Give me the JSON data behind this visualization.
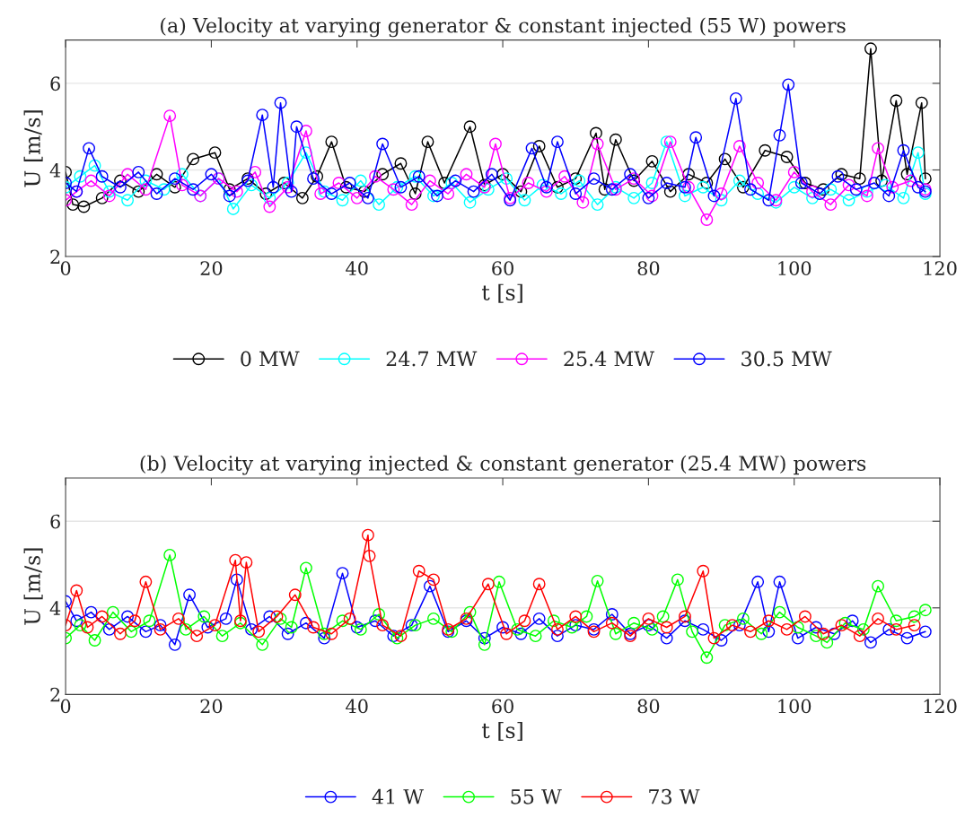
{
  "chart_data": [
    {
      "type": "line",
      "title": "(a) Velocity at varying generator & constant injected (55 W) powers",
      "xlabel": "t [s]",
      "ylabel": "U [m/s]",
      "xlim": [
        0,
        120
      ],
      "xticks": [
        0,
        20,
        40,
        60,
        80,
        100,
        120
      ],
      "ylim": [
        2,
        7
      ],
      "yticks": [
        2,
        4,
        6
      ],
      "grid": "y",
      "legend": "bottom",
      "marker": "circle",
      "line_style": "solid",
      "series": [
        {
          "name": "0 MW",
          "color": "#000000",
          "x": [
            0,
            1,
            2.5,
            5,
            7.5,
            10,
            12.5,
            15,
            17.5,
            20.5,
            22.5,
            25,
            27.5,
            30,
            32.5,
            34.5,
            36.5,
            38.5,
            41,
            43.5,
            46,
            48,
            49.7,
            52,
            55.5,
            57.5,
            60,
            62.5,
            65,
            67.5,
            70,
            72.8,
            74,
            75.5,
            78,
            80.5,
            83,
            85.5,
            88,
            90.5,
            93,
            96,
            99,
            101.5,
            104,
            106.5,
            109,
            110.5,
            112,
            114,
            115.5,
            117.5,
            118
          ],
          "values": [
            3.95,
            3.2,
            3.15,
            3.35,
            3.75,
            3.5,
            3.9,
            3.6,
            4.25,
            4.4,
            3.55,
            3.8,
            3.45,
            3.7,
            3.35,
            3.85,
            4.65,
            3.6,
            3.5,
            3.9,
            4.15,
            3.45,
            4.65,
            3.7,
            5.0,
            3.65,
            3.9,
            3.5,
            4.55,
            3.6,
            3.8,
            4.85,
            3.55,
            4.7,
            3.75,
            4.2,
            3.5,
            3.9,
            3.7,
            4.25,
            3.6,
            4.45,
            4.3,
            3.7,
            3.55,
            3.9,
            3.8,
            6.8,
            3.75,
            5.6,
            3.9,
            5.55,
            3.8
          ]
        },
        {
          "name": "24.7 MW",
          "color": "#00ffff",
          "x": [
            0,
            2,
            4,
            6,
            8.5,
            11,
            13.5,
            16,
            18.5,
            21,
            23,
            25.5,
            28,
            30.5,
            33,
            35.5,
            38,
            40.5,
            43,
            45.5,
            48,
            50.5,
            53,
            55.5,
            58,
            60.5,
            63,
            65.5,
            68,
            70.5,
            73,
            75.5,
            78,
            80.5,
            82.5,
            85,
            87.5,
            90,
            92.5,
            95,
            97.5,
            100,
            102.5,
            105,
            107.5,
            110,
            112.5,
            115,
            117,
            118
          ],
          "values": [
            3.6,
            3.85,
            4.1,
            3.5,
            3.3,
            3.75,
            3.55,
            3.9,
            3.4,
            3.8,
            3.1,
            3.65,
            3.35,
            3.7,
            4.4,
            3.5,
            3.3,
            3.75,
            3.2,
            3.6,
            3.85,
            3.4,
            3.7,
            3.25,
            3.55,
            3.8,
            3.3,
            3.65,
            3.45,
            3.75,
            3.2,
            3.6,
            3.35,
            3.7,
            4.65,
            3.4,
            3.6,
            3.3,
            3.75,
            3.45,
            3.25,
            3.6,
            3.35,
            3.55,
            3.3,
            3.5,
            3.65,
            3.35,
            4.4,
            3.45
          ]
        },
        {
          "name": "25.4 MW",
          "color": "#ff00ff",
          "x": [
            0,
            1.5,
            3.5,
            6,
            8.5,
            11,
            14.3,
            16,
            18.5,
            21,
            23.5,
            26,
            28,
            30.5,
            33,
            35,
            37.5,
            40,
            42.5,
            45,
            47.5,
            50,
            52.5,
            55,
            57.5,
            59,
            61,
            63.5,
            66,
            68.5,
            71,
            73,
            75.5,
            78,
            80.5,
            83,
            85.5,
            88,
            90,
            92.5,
            95,
            97.5,
            100,
            102.5,
            105,
            107.5,
            110,
            111.5,
            113.5,
            116,
            118
          ],
          "values": [
            3.3,
            3.5,
            3.75,
            3.4,
            3.9,
            3.55,
            5.25,
            3.65,
            3.4,
            3.8,
            3.5,
            3.95,
            3.15,
            3.6,
            4.9,
            3.45,
            3.7,
            3.35,
            3.85,
            3.55,
            3.2,
            3.75,
            3.45,
            3.9,
            3.6,
            4.6,
            3.35,
            3.7,
            3.5,
            3.85,
            3.25,
            4.6,
            3.55,
            3.8,
            3.4,
            4.65,
            3.6,
            2.85,
            3.45,
            4.55,
            3.7,
            3.3,
            3.95,
            3.5,
            3.2,
            3.65,
            3.4,
            4.5,
            3.6,
            3.75,
            3.55
          ]
        },
        {
          "name": "30.5 MW",
          "color": "#0000ff",
          "x": [
            0,
            1.5,
            3.2,
            5,
            7.5,
            10,
            12.5,
            15,
            17.5,
            20,
            22.5,
            25,
            27,
            28.5,
            29.5,
            31,
            31.7,
            34,
            36.5,
            39,
            41.5,
            43.5,
            46,
            48.5,
            51,
            53.5,
            56,
            58.5,
            61,
            64,
            66,
            67.5,
            70,
            72.5,
            75,
            77.5,
            80,
            82.5,
            85,
            86.5,
            89,
            92,
            94,
            96.5,
            98,
            99.2,
            101,
            103.5,
            106,
            108.5,
            111,
            113,
            115,
            117,
            118
          ],
          "values": [
            3.7,
            3.5,
            4.5,
            3.85,
            3.6,
            3.95,
            3.45,
            3.8,
            3.55,
            3.9,
            3.4,
            3.75,
            5.27,
            3.6,
            5.55,
            3.5,
            5.0,
            3.8,
            3.45,
            3.7,
            3.35,
            4.6,
            3.6,
            3.85,
            3.4,
            3.75,
            3.5,
            3.9,
            3.3,
            4.5,
            3.6,
            4.65,
            3.45,
            3.8,
            3.55,
            3.9,
            3.35,
            3.7,
            3.6,
            4.75,
            3.4,
            5.65,
            3.55,
            3.3,
            4.8,
            5.97,
            3.7,
            3.45,
            3.85,
            3.55,
            3.7,
            3.4,
            4.45,
            3.6,
            3.5
          ]
        }
      ]
    },
    {
      "type": "line",
      "title": "(b) Velocity at varying injected & constant generator (25.4 MW) powers",
      "xlabel": "t [s]",
      "ylabel": "U [m/s]",
      "xlim": [
        0,
        120
      ],
      "xticks": [
        0,
        20,
        40,
        60,
        80,
        100,
        120
      ],
      "ylim": [
        2,
        7
      ],
      "yticks": [
        2,
        4,
        6
      ],
      "grid": "y",
      "legend": "bottom",
      "marker": "circle",
      "line_style": "solid",
      "series": [
        {
          "name": "41 W",
          "color": "#0000ff",
          "x": [
            0,
            1.5,
            3.5,
            6,
            8.5,
            11,
            13,
            15,
            17,
            19.5,
            22,
            23.5,
            25.5,
            28,
            30.5,
            33,
            35.5,
            38,
            40,
            42.5,
            45,
            47.5,
            50,
            52.5,
            55,
            57.5,
            60,
            62.5,
            65,
            67.5,
            70,
            72.5,
            75,
            77.5,
            80,
            82.5,
            85,
            87.5,
            90,
            92.5,
            95,
            96.5,
            98,
            100.5,
            103,
            105.5,
            108,
            110.5,
            113,
            115.5,
            118
          ],
          "values": [
            4.15,
            3.7,
            3.9,
            3.5,
            3.8,
            3.45,
            3.6,
            3.15,
            4.3,
            3.55,
            3.75,
            4.65,
            3.5,
            3.8,
            3.4,
            3.65,
            3.3,
            4.8,
            3.55,
            3.7,
            3.35,
            3.6,
            4.5,
            3.45,
            3.7,
            3.3,
            3.55,
            3.4,
            3.75,
            3.35,
            3.6,
            3.5,
            3.85,
            3.4,
            3.6,
            3.3,
            3.7,
            3.5,
            3.25,
            3.6,
            4.6,
            3.45,
            4.6,
            3.3,
            3.55,
            3.4,
            3.7,
            3.2,
            3.5,
            3.3,
            3.45
          ]
        },
        {
          "name": "55 W",
          "color": "#00ff00",
          "x": [
            0,
            2,
            4,
            6.5,
            9,
            11.5,
            14.3,
            16.5,
            19,
            21.5,
            24,
            27,
            29.5,
            31,
            33,
            35.5,
            38,
            40.5,
            43,
            45.5,
            48,
            50.5,
            53,
            55.5,
            57.5,
            59.5,
            62,
            64.5,
            67,
            69.5,
            71.5,
            73,
            75.5,
            78,
            80.5,
            82,
            84,
            86,
            88,
            90.5,
            93,
            95.5,
            98,
            100.5,
            103,
            104.5,
            107,
            109.5,
            111.5,
            114,
            116.5,
            118
          ],
          "values": [
            3.3,
            3.6,
            3.25,
            3.9,
            3.45,
            3.7,
            5.22,
            3.5,
            3.8,
            3.35,
            3.65,
            3.15,
            3.75,
            3.55,
            4.92,
            3.4,
            3.7,
            3.5,
            3.85,
            3.3,
            3.6,
            3.75,
            3.45,
            3.9,
            3.15,
            4.6,
            3.5,
            3.35,
            3.7,
            3.55,
            3.8,
            4.62,
            3.4,
            3.65,
            3.5,
            3.8,
            4.65,
            3.45,
            2.85,
            3.6,
            3.75,
            3.4,
            3.9,
            3.55,
            3.35,
            3.2,
            3.65,
            3.5,
            4.5,
            3.7,
            3.8,
            3.95
          ]
        },
        {
          "name": "73 W",
          "color": "#ff0000",
          "x": [
            0,
            1.5,
            3,
            5,
            7.5,
            9.5,
            11,
            13,
            15.5,
            18,
            20.5,
            23.3,
            24,
            24.8,
            26.5,
            29,
            31.5,
            34,
            36.5,
            39,
            41.5,
            41.7,
            43.5,
            46,
            48.5,
            50.5,
            52.5,
            55,
            58,
            60.5,
            63,
            65,
            67.5,
            70,
            72.5,
            75,
            77.5,
            80,
            82.5,
            85,
            87.5,
            89,
            91.5,
            94,
            96.5,
            99,
            101.5,
            104,
            106.5,
            109,
            111.5,
            114,
            116.5
          ],
          "values": [
            3.6,
            4.4,
            3.55,
            3.8,
            3.4,
            3.7,
            4.6,
            3.5,
            3.75,
            3.35,
            3.6,
            5.1,
            3.7,
            5.05,
            3.45,
            3.8,
            4.3,
            3.55,
            3.4,
            3.75,
            5.68,
            5.2,
            3.6,
            3.35,
            4.85,
            4.65,
            3.5,
            3.75,
            4.55,
            3.4,
            3.7,
            4.55,
            3.5,
            3.8,
            3.45,
            3.65,
            3.35,
            3.75,
            3.55,
            3.8,
            4.85,
            3.3,
            3.6,
            3.45,
            3.7,
            3.5,
            3.8,
            3.4,
            3.6,
            3.35,
            3.75,
            3.5,
            3.6
          ]
        }
      ]
    }
  ]
}
